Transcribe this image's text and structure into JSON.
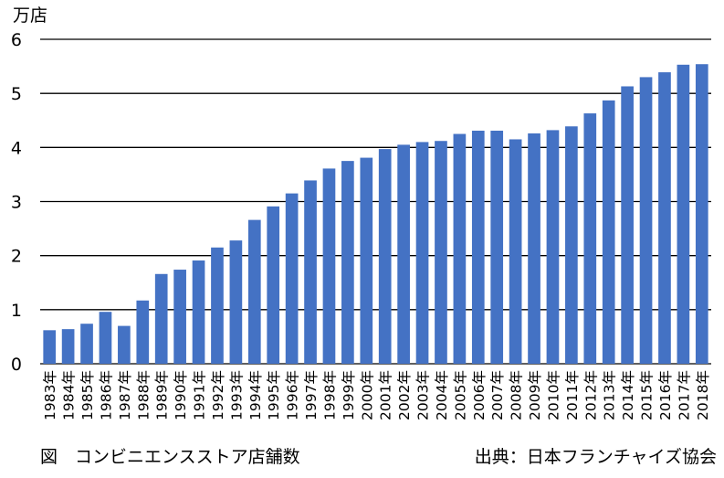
{
  "chart_data": {
    "type": "bar",
    "ylabel": "万店",
    "ylim": [
      0,
      6
    ],
    "yticks": [
      0,
      1,
      2,
      3,
      4,
      5,
      6
    ],
    "grid": true,
    "bar_color": "#4472C4",
    "categories": [
      "1983年",
      "1984年",
      "1985年",
      "1986年",
      "1987年",
      "1988年",
      "1989年",
      "1990年",
      "1991年",
      "1992年",
      "1993年",
      "1994年",
      "1995年",
      "1996年",
      "1997年",
      "1998年",
      "1999年",
      "2000年",
      "2001年",
      "2002年",
      "2003年",
      "2004年",
      "2005年",
      "2006年",
      "2007年",
      "2008年",
      "2009年",
      "2010年",
      "2011年",
      "2012年",
      "2013年",
      "2014年",
      "2015年",
      "2016年",
      "2017年",
      "2018年"
    ],
    "values": [
      0.62,
      0.64,
      0.74,
      0.96,
      0.7,
      1.17,
      1.66,
      1.74,
      1.91,
      2.15,
      2.28,
      2.66,
      2.91,
      3.15,
      3.39,
      3.61,
      3.75,
      3.81,
      3.97,
      4.05,
      4.1,
      4.12,
      4.25,
      4.31,
      4.31,
      4.15,
      4.26,
      4.32,
      4.39,
      4.63,
      4.87,
      5.13,
      5.3,
      5.39,
      5.53,
      5.54
    ]
  },
  "captions": {
    "figure": "図　コンビニエンスストア店舗数",
    "source": "出典：日本フランチャイズ協会"
  }
}
